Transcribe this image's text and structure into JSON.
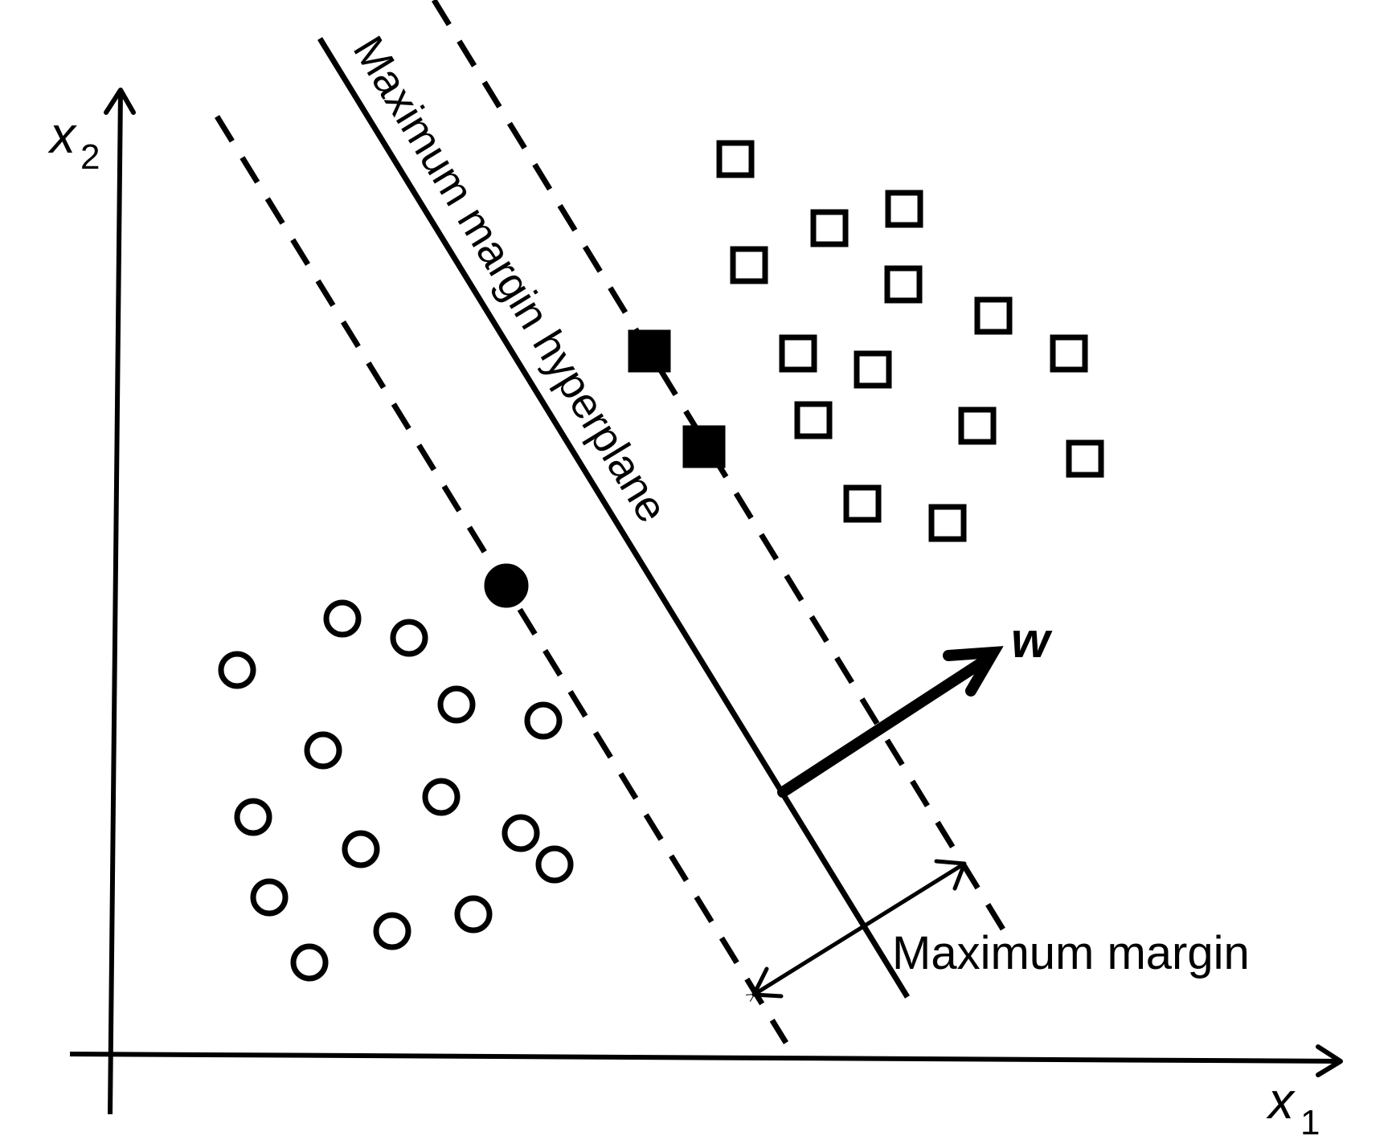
{
  "diagram": {
    "x_axis_label": "x",
    "x_axis_subscript": "1",
    "y_axis_label": "x",
    "y_axis_subscript": "2",
    "hyperplane_label": "Maximum margin hyperplane",
    "margin_label": "Maximum margin",
    "vector_label": "w"
  }
}
